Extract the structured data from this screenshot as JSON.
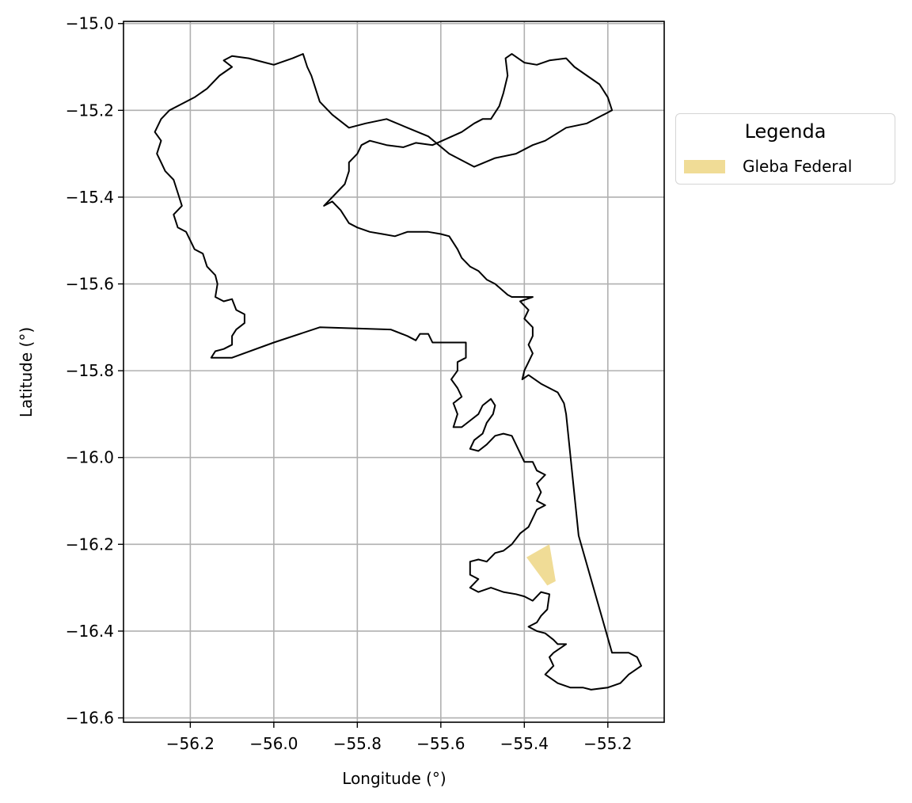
{
  "chart_data": {
    "type": "map",
    "title": "",
    "xlabel": "Longitude (°)",
    "ylabel": "Latitude (°)",
    "xlim": [
      -56.36,
      -55.065
    ],
    "ylim": [
      -16.61,
      -14.995
    ],
    "grid": true,
    "x_ticks": [
      -56.2,
      -56.0,
      -55.8,
      -55.6,
      -55.4,
      -55.2
    ],
    "x_tick_labels": [
      "−56.2",
      "−56.0",
      "−55.8",
      "−55.6",
      "−55.4",
      "−55.2"
    ],
    "y_ticks": [
      -15.0,
      -15.2,
      -15.4,
      -15.6,
      -15.8,
      -16.0,
      -16.2,
      -16.4,
      -16.6
    ],
    "y_tick_labels": [
      "−15.0",
      "−15.2",
      "−15.4",
      "−15.6",
      "−15.8",
      "−16.0",
      "−16.2",
      "−16.4",
      "−16.6"
    ],
    "boundary_color": "#000000",
    "boundary": [
      [
        -55.93,
        -15.07
      ],
      [
        -55.955,
        -15.08
      ],
      [
        -56.0,
        -15.095
      ],
      [
        -56.02,
        -15.09
      ],
      [
        -56.06,
        -15.08
      ],
      [
        -56.1,
        -15.075
      ],
      [
        -56.12,
        -15.085
      ],
      [
        -56.1,
        -15.1
      ],
      [
        -56.13,
        -15.12
      ],
      [
        -56.16,
        -15.15
      ],
      [
        -56.19,
        -15.17
      ],
      [
        -56.22,
        -15.185
      ],
      [
        -56.25,
        -15.2
      ],
      [
        -56.27,
        -15.22
      ],
      [
        -56.285,
        -15.25
      ],
      [
        -56.27,
        -15.27
      ],
      [
        -56.28,
        -15.3
      ],
      [
        -56.27,
        -15.32
      ],
      [
        -56.26,
        -15.34
      ],
      [
        -56.24,
        -15.36
      ],
      [
        -56.23,
        -15.39
      ],
      [
        -56.22,
        -15.42
      ],
      [
        -56.24,
        -15.44
      ],
      [
        -56.23,
        -15.47
      ],
      [
        -56.21,
        -15.48
      ],
      [
        -56.2,
        -15.5
      ],
      [
        -56.19,
        -15.52
      ],
      [
        -56.17,
        -15.53
      ],
      [
        -56.16,
        -15.56
      ],
      [
        -56.14,
        -15.58
      ],
      [
        -56.135,
        -15.6
      ],
      [
        -56.14,
        -15.63
      ],
      [
        -56.12,
        -15.64
      ],
      [
        -56.1,
        -15.635
      ],
      [
        -56.09,
        -15.66
      ],
      [
        -56.07,
        -15.67
      ],
      [
        -56.07,
        -15.69
      ],
      [
        -56.09,
        -15.705
      ],
      [
        -56.1,
        -15.72
      ],
      [
        -56.1,
        -15.74
      ],
      [
        -56.12,
        -15.75
      ],
      [
        -56.14,
        -15.755
      ],
      [
        -56.15,
        -15.77
      ],
      [
        -56.1,
        -15.77
      ],
      [
        -56.0,
        -15.735
      ],
      [
        -55.89,
        -15.7
      ],
      [
        -55.72,
        -15.705
      ],
      [
        -55.68,
        -15.72
      ],
      [
        -55.66,
        -15.73
      ],
      [
        -55.65,
        -15.715
      ],
      [
        -55.63,
        -15.715
      ],
      [
        -55.62,
        -15.735
      ],
      [
        -55.54,
        -15.735
      ],
      [
        -55.54,
        -15.77
      ],
      [
        -55.56,
        -15.78
      ],
      [
        -55.56,
        -15.8
      ],
      [
        -55.575,
        -15.82
      ],
      [
        -55.56,
        -15.84
      ],
      [
        -55.55,
        -15.86
      ],
      [
        -55.57,
        -15.875
      ],
      [
        -55.56,
        -15.9
      ],
      [
        -55.57,
        -15.93
      ],
      [
        -55.55,
        -15.93
      ],
      [
        -55.53,
        -15.915
      ],
      [
        -55.51,
        -15.9
      ],
      [
        -55.5,
        -15.88
      ],
      [
        -55.48,
        -15.865
      ],
      [
        -55.47,
        -15.88
      ],
      [
        -55.475,
        -15.9
      ],
      [
        -55.49,
        -15.92
      ],
      [
        -55.5,
        -15.945
      ],
      [
        -55.52,
        -15.96
      ],
      [
        -55.53,
        -15.98
      ],
      [
        -55.51,
        -15.985
      ],
      [
        -55.49,
        -15.97
      ],
      [
        -55.47,
        -15.95
      ],
      [
        -55.45,
        -15.945
      ],
      [
        -55.43,
        -15.95
      ],
      [
        -55.42,
        -15.97
      ],
      [
        -55.41,
        -15.99
      ],
      [
        -55.4,
        -16.01
      ],
      [
        -55.38,
        -16.01
      ],
      [
        -55.37,
        -16.03
      ],
      [
        -55.35,
        -16.04
      ],
      [
        -55.37,
        -16.06
      ],
      [
        -55.36,
        -16.08
      ],
      [
        -55.37,
        -16.1
      ],
      [
        -55.35,
        -16.11
      ],
      [
        -55.37,
        -16.12
      ],
      [
        -55.38,
        -16.14
      ],
      [
        -55.39,
        -16.16
      ],
      [
        -55.41,
        -16.175
      ],
      [
        -55.43,
        -16.2
      ],
      [
        -55.45,
        -16.215
      ],
      [
        -55.47,
        -16.22
      ],
      [
        -55.49,
        -16.24
      ],
      [
        -55.51,
        -16.235
      ],
      [
        -55.53,
        -16.24
      ],
      [
        -55.53,
        -16.27
      ],
      [
        -55.51,
        -16.28
      ],
      [
        -55.53,
        -16.3
      ],
      [
        -55.51,
        -16.31
      ],
      [
        -55.48,
        -16.3
      ],
      [
        -55.45,
        -16.31
      ],
      [
        -55.42,
        -16.315
      ],
      [
        -55.4,
        -16.32
      ],
      [
        -55.38,
        -16.33
      ],
      [
        -55.36,
        -16.31
      ],
      [
        -55.34,
        -16.315
      ],
      [
        -55.345,
        -16.35
      ],
      [
        -55.36,
        -16.365
      ],
      [
        -55.37,
        -16.38
      ],
      [
        -55.39,
        -16.39
      ],
      [
        -55.37,
        -16.4
      ],
      [
        -55.35,
        -16.405
      ],
      [
        -55.33,
        -16.42
      ],
      [
        -55.32,
        -16.43
      ],
      [
        -55.3,
        -16.43
      ],
      [
        -55.33,
        -16.45
      ],
      [
        -55.34,
        -16.46
      ],
      [
        -55.33,
        -16.48
      ],
      [
        -55.35,
        -16.5
      ],
      [
        -55.32,
        -16.52
      ],
      [
        -55.29,
        -16.53
      ],
      [
        -55.26,
        -16.53
      ],
      [
        -55.24,
        -16.535
      ],
      [
        -55.2,
        -16.53
      ],
      [
        -55.17,
        -16.52
      ],
      [
        -55.15,
        -16.5
      ],
      [
        -55.12,
        -16.48
      ],
      [
        -55.13,
        -16.46
      ],
      [
        -55.15,
        -16.45
      ],
      [
        -55.19,
        -16.45
      ],
      [
        -55.27,
        -16.18
      ],
      [
        -55.3,
        -15.9
      ],
      [
        -55.305,
        -15.875
      ],
      [
        -55.32,
        -15.85
      ],
      [
        -55.36,
        -15.83
      ],
      [
        -55.39,
        -15.81
      ],
      [
        -55.405,
        -15.82
      ],
      [
        -55.4,
        -15.8
      ],
      [
        -55.39,
        -15.78
      ],
      [
        -55.38,
        -15.76
      ],
      [
        -55.39,
        -15.74
      ],
      [
        -55.38,
        -15.72
      ],
      [
        -55.38,
        -15.7
      ],
      [
        -55.4,
        -15.68
      ],
      [
        -55.39,
        -15.66
      ],
      [
        -55.41,
        -15.64
      ],
      [
        -55.38,
        -15.63
      ],
      [
        -55.43,
        -15.63
      ],
      [
        -55.44,
        -15.625
      ],
      [
        -55.47,
        -15.6
      ],
      [
        -55.49,
        -15.59
      ],
      [
        -55.51,
        -15.57
      ],
      [
        -55.53,
        -15.56
      ],
      [
        -55.55,
        -15.54
      ],
      [
        -55.56,
        -15.52
      ],
      [
        -55.58,
        -15.49
      ],
      [
        -55.6,
        -15.485
      ],
      [
        -55.63,
        -15.48
      ],
      [
        -55.68,
        -15.48
      ],
      [
        -55.71,
        -15.49
      ],
      [
        -55.74,
        -15.485
      ],
      [
        -55.77,
        -15.48
      ],
      [
        -55.8,
        -15.47
      ],
      [
        -55.82,
        -15.46
      ],
      [
        -55.84,
        -15.43
      ],
      [
        -55.86,
        -15.41
      ],
      [
        -55.88,
        -15.42
      ],
      [
        -55.85,
        -15.39
      ],
      [
        -55.83,
        -15.37
      ],
      [
        -55.82,
        -15.34
      ],
      [
        -55.82,
        -15.32
      ],
      [
        -55.8,
        -15.3
      ],
      [
        -55.79,
        -15.28
      ],
      [
        -55.77,
        -15.27
      ],
      [
        -55.73,
        -15.28
      ],
      [
        -55.69,
        -15.285
      ],
      [
        -55.66,
        -15.275
      ],
      [
        -55.62,
        -15.28
      ],
      [
        -55.55,
        -15.25
      ],
      [
        -55.52,
        -15.23
      ],
      [
        -55.5,
        -15.22
      ],
      [
        -55.48,
        -15.22
      ],
      [
        -55.46,
        -15.19
      ],
      [
        -55.45,
        -15.16
      ],
      [
        -55.44,
        -15.12
      ],
      [
        -55.445,
        -15.08
      ],
      [
        -55.43,
        -15.07
      ],
      [
        -55.4,
        -15.09
      ],
      [
        -55.37,
        -15.095
      ],
      [
        -55.34,
        -15.085
      ],
      [
        -55.3,
        -15.08
      ],
      [
        -55.28,
        -15.1
      ],
      [
        -55.25,
        -15.12
      ],
      [
        -55.22,
        -15.14
      ],
      [
        -55.2,
        -15.17
      ],
      [
        -55.19,
        -15.2
      ],
      [
        -55.25,
        -15.23
      ],
      [
        -55.3,
        -15.24
      ],
      [
        -55.35,
        -15.27
      ],
      [
        -55.38,
        -15.28
      ],
      [
        -55.42,
        -15.3
      ],
      [
        -55.47,
        -15.31
      ],
      [
        -55.52,
        -15.33
      ],
      [
        -55.58,
        -15.3
      ],
      [
        -55.63,
        -15.26
      ],
      [
        -55.68,
        -15.24
      ],
      [
        -55.73,
        -15.22
      ],
      [
        -55.78,
        -15.23
      ],
      [
        -55.82,
        -15.24
      ],
      [
        -55.86,
        -15.21
      ],
      [
        -55.89,
        -15.18
      ],
      [
        -55.9,
        -15.15
      ],
      [
        -55.91,
        -15.12
      ],
      [
        -55.92,
        -15.1
      ],
      [
        -55.93,
        -15.07
      ]
    ],
    "legend_title": "Legenda",
    "legend_placement": "right, outside axes",
    "layers": [
      {
        "name": "Gleba Federal",
        "color": "#f0dc96",
        "polygon": [
          [
            -55.395,
            -16.23
          ],
          [
            -55.34,
            -16.2
          ],
          [
            -55.325,
            -16.285
          ],
          [
            -55.345,
            -16.295
          ]
        ]
      }
    ]
  }
}
